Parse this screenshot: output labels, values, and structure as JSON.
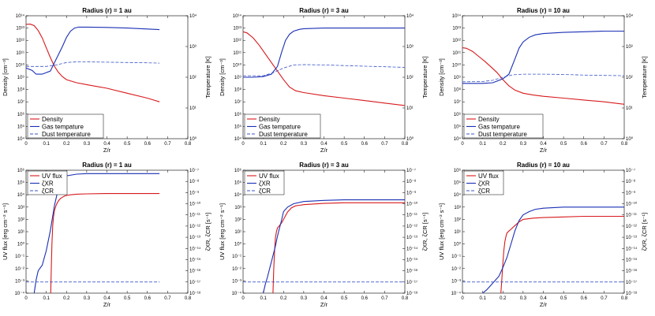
{
  "figure": {
    "colors": {
      "red": "#d7191c",
      "blue": "#1a2fb4",
      "dash": "#3a55c8"
    }
  },
  "chart_data": [
    {
      "type": "line",
      "title": "Radius (r) = 1 au",
      "xlabel": "Z/r",
      "ylabel_left": "Density [cm⁻³]",
      "ylabel_right": "Temperature [K]",
      "xlim": [
        0,
        0.8
      ],
      "xticks": [
        "0",
        "0.1",
        "0.2",
        "0.3",
        "0.4",
        "0.5",
        "0.6",
        "0.7",
        "0.8"
      ],
      "left_log": [
        4,
        14
      ],
      "left_ticks": [
        "10⁴",
        "10⁵",
        "10⁶",
        "10⁷",
        "10⁸",
        "10⁹",
        "10¹⁰",
        "10¹¹",
        "10¹²",
        "10¹³",
        "10¹⁴"
      ],
      "right_log": [
        0,
        4
      ],
      "right_ticks": [
        "10⁰",
        "10¹",
        "10²",
        "10³",
        "10⁴"
      ],
      "legend": [
        "Density",
        "Gas tempature",
        "Dust temperature"
      ],
      "series": [
        {
          "name": "Density",
          "color": "red",
          "dash": false,
          "axis": "left",
          "x": [
            0,
            0.02,
            0.04,
            0.06,
            0.08,
            0.1,
            0.12,
            0.14,
            0.16,
            0.18,
            0.2,
            0.25,
            0.3,
            0.4,
            0.5,
            0.6,
            0.66
          ],
          "y": [
            13.3,
            13.32,
            13.2,
            12.8,
            12.2,
            11.4,
            10.6,
            9.9,
            9.4,
            9.05,
            8.8,
            8.55,
            8.4,
            8.1,
            7.7,
            7.3,
            7.0
          ]
        },
        {
          "name": "Gas tempature",
          "color": "blue",
          "dash": false,
          "axis": "right",
          "x": [
            0,
            0.03,
            0.05,
            0.08,
            0.12,
            0.15,
            0.18,
            0.2,
            0.22,
            0.24,
            0.26,
            0.3,
            0.4,
            0.5,
            0.6,
            0.66
          ],
          "y": [
            2.3,
            2.22,
            2.1,
            2.1,
            2.2,
            2.6,
            3.0,
            3.3,
            3.5,
            3.6,
            3.63,
            3.63,
            3.62,
            3.6,
            3.57,
            3.55
          ]
        },
        {
          "name": "Dust temperature",
          "color": "dash",
          "dash": true,
          "axis": "right",
          "x": [
            0,
            0.1,
            0.15,
            0.2,
            0.25,
            0.3,
            0.4,
            0.5,
            0.6,
            0.66
          ],
          "y": [
            2.35,
            2.35,
            2.4,
            2.48,
            2.5,
            2.5,
            2.49,
            2.48,
            2.47,
            2.46
          ]
        }
      ]
    },
    {
      "type": "line",
      "title": "Radius (r) = 3 au",
      "xlabel": "Z/r",
      "ylabel_left": "Density [cm⁻³]",
      "ylabel_right": "Temperature [K]",
      "xlim": [
        0,
        0.8
      ],
      "xticks": [
        "0",
        "0.1",
        "0.2",
        "0.3",
        "0.4",
        "0.5",
        "0.6",
        "0.7",
        "0.8"
      ],
      "left_log": [
        4,
        14
      ],
      "left_ticks": [
        "10⁴",
        "10⁵",
        "10⁶",
        "10⁷",
        "10⁸",
        "10⁹",
        "10¹⁰",
        "10¹¹",
        "10¹²",
        "10¹³",
        "10¹⁴"
      ],
      "right_log": [
        0,
        4
      ],
      "right_ticks": [
        "10⁰",
        "10¹",
        "10²",
        "10³",
        "10⁴"
      ],
      "legend": [
        "Density",
        "Gas tempature",
        "Dust temperature"
      ],
      "series": [
        {
          "name": "Density",
          "color": "red",
          "dash": false,
          "axis": "left",
          "x": [
            0,
            0.02,
            0.05,
            0.08,
            0.11,
            0.14,
            0.17,
            0.2,
            0.23,
            0.26,
            0.3,
            0.4,
            0.5,
            0.6,
            0.7,
            0.8
          ],
          "y": [
            12.7,
            12.6,
            12.2,
            11.6,
            10.9,
            10.2,
            9.5,
            8.8,
            8.2,
            7.9,
            7.75,
            7.5,
            7.3,
            7.1,
            6.9,
            6.7
          ]
        },
        {
          "name": "Gas tempature",
          "color": "blue",
          "dash": false,
          "axis": "right",
          "x": [
            0,
            0.05,
            0.1,
            0.14,
            0.17,
            0.19,
            0.21,
            0.23,
            0.25,
            0.28,
            0.3,
            0.4,
            0.5,
            0.6,
            0.7,
            0.8
          ],
          "y": [
            2.0,
            2.0,
            2.02,
            2.1,
            2.35,
            2.8,
            3.2,
            3.4,
            3.5,
            3.56,
            3.58,
            3.6,
            3.6,
            3.6,
            3.6,
            3.6
          ]
        },
        {
          "name": "Dust temperature",
          "color": "dash",
          "dash": true,
          "axis": "right",
          "x": [
            0,
            0.1,
            0.15,
            0.2,
            0.25,
            0.3,
            0.4,
            0.5,
            0.6,
            0.7,
            0.8
          ],
          "y": [
            2.05,
            2.05,
            2.15,
            2.3,
            2.4,
            2.41,
            2.4,
            2.38,
            2.36,
            2.34,
            2.32
          ]
        }
      ]
    },
    {
      "type": "line",
      "title": "Radius (r) = 10 au",
      "xlabel": "Z/r",
      "ylabel_left": "Density [cm⁻³]",
      "ylabel_right": "Temperature [K]",
      "xlim": [
        0,
        0.8
      ],
      "xticks": [
        "0",
        "0.1",
        "0.2",
        "0.3",
        "0.4",
        "0.5",
        "0.6",
        "0.7",
        "0.8"
      ],
      "left_log": [
        4,
        14
      ],
      "left_ticks": [
        "10⁴",
        "10⁵",
        "10⁶",
        "10⁷",
        "10⁸",
        "10⁹",
        "10¹⁰",
        "10¹¹",
        "10¹²",
        "10¹³",
        "10¹⁴"
      ],
      "right_log": [
        0,
        4
      ],
      "right_ticks": [
        "10⁰",
        "10¹",
        "10²",
        "10³",
        "10⁴"
      ],
      "legend": [
        "Density",
        "Gas tempature",
        "Dust temperature"
      ],
      "series": [
        {
          "name": "Density",
          "color": "red",
          "dash": false,
          "axis": "left",
          "x": [
            0,
            0.02,
            0.05,
            0.08,
            0.11,
            0.14,
            0.17,
            0.2,
            0.23,
            0.26,
            0.3,
            0.35,
            0.4,
            0.5,
            0.6,
            0.7,
            0.8
          ],
          "y": [
            11.4,
            11.35,
            11.1,
            10.7,
            10.3,
            9.85,
            9.4,
            8.8,
            8.3,
            7.95,
            7.7,
            7.55,
            7.45,
            7.3,
            7.15,
            7.0,
            6.8
          ]
        },
        {
          "name": "Gas tempature",
          "color": "blue",
          "dash": false,
          "axis": "right",
          "x": [
            0,
            0.1,
            0.15,
            0.2,
            0.23,
            0.26,
            0.28,
            0.3,
            0.33,
            0.36,
            0.4,
            0.5,
            0.6,
            0.7,
            0.8
          ],
          "y": [
            1.8,
            1.8,
            1.82,
            1.95,
            2.1,
            2.6,
            2.95,
            3.15,
            3.3,
            3.38,
            3.42,
            3.46,
            3.48,
            3.5,
            3.5
          ]
        },
        {
          "name": "Dust temperature",
          "color": "dash",
          "dash": true,
          "axis": "right",
          "x": [
            0,
            0.1,
            0.15,
            0.2,
            0.25,
            0.3,
            0.4,
            0.5,
            0.6,
            0.7,
            0.8
          ],
          "y": [
            1.85,
            1.86,
            1.9,
            2.0,
            2.08,
            2.1,
            2.1,
            2.09,
            2.07,
            2.06,
            2.05
          ]
        }
      ]
    },
    {
      "type": "line",
      "title": "Radius (r) = 1 au",
      "xlabel": "Z/r",
      "ylabel_left": "UV flux [erg cm⁻² s⁻¹]",
      "ylabel_right": "ζXR, ζCR [s⁻¹]",
      "xlim": [
        0,
        0.8
      ],
      "xticks": [
        "0",
        "0.1",
        "0.2",
        "0.3",
        "0.4",
        "0.5",
        "0.6",
        "0.7",
        "0.8"
      ],
      "left_log": [
        -4,
        6
      ],
      "left_ticks": [
        "10⁻⁴",
        "10⁻³",
        "10⁻²",
        "10⁻¹",
        "10⁰",
        "10¹",
        "10²",
        "10³",
        "10⁴",
        "10⁵",
        "10⁶"
      ],
      "right_log": [
        -18,
        -7
      ],
      "right_ticks": [
        "10⁻¹⁸",
        "10⁻¹⁷",
        "10⁻¹⁶",
        "10⁻¹⁵",
        "10⁻¹⁴",
        "10⁻¹³",
        "10⁻¹²",
        "10⁻¹¹",
        "10⁻¹⁰",
        "10⁻⁹",
        "10⁻⁸",
        "10⁻⁷"
      ],
      "legend": [
        "UV flux",
        "ζXR",
        "ζCR"
      ],
      "series": [
        {
          "name": "UV flux",
          "color": "red",
          "dash": false,
          "axis": "left",
          "x": [
            0.122,
            0.125,
            0.128,
            0.132,
            0.136,
            0.14,
            0.15,
            0.16,
            0.17,
            0.18,
            0.19,
            0.2,
            0.22,
            0.25,
            0.3,
            0.4,
            0.5,
            0.6,
            0.66
          ],
          "y": [
            -4,
            -2,
            0,
            1.5,
            2.2,
            2.7,
            3.2,
            3.5,
            3.7,
            3.8,
            3.9,
            3.95,
            4.0,
            4.05,
            4.08,
            4.1,
            4.1,
            4.1,
            4.1
          ]
        },
        {
          "name": "ζXR",
          "color": "blue",
          "dash": false,
          "axis": "right",
          "x": [
            0.04,
            0.05,
            0.06,
            0.08,
            0.1,
            0.12,
            0.14,
            0.16,
            0.18,
            0.2,
            0.25,
            0.3,
            0.4,
            0.5,
            0.6,
            0.66
          ],
          "y": [
            -18,
            -16.8,
            -16,
            -15.5,
            -14.2,
            -12.4,
            -10.2,
            -8.6,
            -7.8,
            -7.5,
            -7.35,
            -7.3,
            -7.3,
            -7.3,
            -7.3,
            -7.3
          ]
        },
        {
          "name": "ζCR",
          "color": "dash",
          "dash": true,
          "axis": "right",
          "x": [
            0,
            0.66
          ],
          "y": [
            -17,
            -17
          ]
        }
      ]
    },
    {
      "type": "line",
      "title": "Radius (r) = 3 au",
      "xlabel": "Z/r",
      "ylabel_left": "UV flux [erg cm⁻² s⁻¹]",
      "ylabel_right": "ζXR, ζCR [s⁻¹]",
      "xlim": [
        0,
        0.8
      ],
      "xticks": [
        "0",
        "0.1",
        "0.2",
        "0.3",
        "0.4",
        "0.5",
        "0.6",
        "0.7",
        "0.8"
      ],
      "left_log": [
        -4,
        6
      ],
      "left_ticks": [
        "10⁻⁴",
        "10⁻³",
        "10⁻²",
        "10⁻¹",
        "10⁰",
        "10¹",
        "10²",
        "10³",
        "10⁴",
        "10⁵",
        "10⁶"
      ],
      "right_log": [
        -18,
        -7
      ],
      "right_ticks": [
        "10⁻¹⁸",
        "10⁻¹⁷",
        "10⁻¹⁶",
        "10⁻¹⁵",
        "10⁻¹⁴",
        "10⁻¹³",
        "10⁻¹²",
        "10⁻¹¹",
        "10⁻¹⁰",
        "10⁻⁹",
        "10⁻⁸",
        "10⁻⁷"
      ],
      "legend": [
        "UV flux",
        "ζXR",
        "ζCR"
      ],
      "series": [
        {
          "name": "UV flux",
          "color": "red",
          "dash": false,
          "axis": "left",
          "x": [
            0.148,
            0.152,
            0.156,
            0.16,
            0.165,
            0.17,
            0.18,
            0.19,
            0.2,
            0.22,
            0.24,
            0.26,
            0.3,
            0.4,
            0.5,
            0.6,
            0.7,
            0.8
          ],
          "y": [
            -4,
            -2,
            -0.5,
            0.5,
            1.0,
            1.3,
            1.5,
            1.7,
            2.0,
            2.6,
            2.95,
            3.1,
            3.2,
            3.3,
            3.35,
            3.35,
            3.35,
            3.35
          ]
        },
        {
          "name": "ζXR",
          "color": "blue",
          "dash": false,
          "axis": "right",
          "x": [
            0.1,
            0.11,
            0.12,
            0.13,
            0.14,
            0.15,
            0.16,
            0.17,
            0.18,
            0.19,
            0.2,
            0.22,
            0.25,
            0.3,
            0.4,
            0.5,
            0.6,
            0.7,
            0.8
          ],
          "y": [
            -18,
            -17.2,
            -16.6,
            -15.9,
            -15.2,
            -14.5,
            -13.8,
            -12.9,
            -12.2,
            -11.5,
            -10.7,
            -10.3,
            -10.0,
            -9.8,
            -9.7,
            -9.65,
            -9.65,
            -9.65,
            -9.65
          ]
        },
        {
          "name": "ζCR",
          "color": "dash",
          "dash": true,
          "axis": "right",
          "x": [
            0,
            0.8
          ],
          "y": [
            -17,
            -17
          ]
        }
      ]
    },
    {
      "type": "line",
      "title": "Radius (r) = 10 au",
      "xlabel": "Z/r",
      "ylabel_left": "UV flux [erg cm⁻² s⁻¹]",
      "ylabel_right": "ζXR, ζCR [s⁻¹]",
      "xlim": [
        0,
        0.8
      ],
      "xticks": [
        "0",
        "0.1",
        "0.2",
        "0.3",
        "0.4",
        "0.5",
        "0.6",
        "0.7",
        "0.8"
      ],
      "left_log": [
        -4,
        6
      ],
      "left_ticks": [
        "10⁻⁴",
        "10⁻³",
        "10⁻²",
        "10⁻¹",
        "10⁰",
        "10¹",
        "10²",
        "10³",
        "10⁴",
        "10⁵",
        "10⁶"
      ],
      "right_log": [
        -18,
        -7
      ],
      "right_ticks": [
        "10⁻¹⁸",
        "10⁻¹⁷",
        "10⁻¹⁶",
        "10⁻¹⁵",
        "10⁻¹⁴",
        "10⁻¹³",
        "10⁻¹²",
        "10⁻¹¹",
        "10⁻¹⁰",
        "10⁻⁹",
        "10⁻⁸",
        "10⁻⁷"
      ],
      "legend": [
        "UV flux",
        "ζXR",
        "ζCR"
      ],
      "series": [
        {
          "name": "UV flux",
          "color": "red",
          "dash": false,
          "axis": "left",
          "x": [
            0.19,
            0.195,
            0.2,
            0.205,
            0.21,
            0.215,
            0.22,
            0.23,
            0.24,
            0.26,
            0.28,
            0.3,
            0.35,
            0.4,
            0.5,
            0.6,
            0.7,
            0.8
          ],
          "y": [
            -4,
            -2.8,
            -1.5,
            -0.5,
            0.2,
            0.6,
            0.9,
            1.05,
            1.2,
            1.5,
            1.8,
            2.0,
            2.1,
            2.15,
            2.2,
            2.25,
            2.25,
            2.25
          ]
        },
        {
          "name": "ζXR",
          "color": "blue",
          "dash": false,
          "axis": "right",
          "x": [
            0.1,
            0.12,
            0.14,
            0.16,
            0.18,
            0.2,
            0.22,
            0.24,
            0.26,
            0.28,
            0.3,
            0.33,
            0.36,
            0.4,
            0.5,
            0.6,
            0.7,
            0.8
          ],
          "y": [
            -18,
            -17.7,
            -17.3,
            -16.9,
            -16.5,
            -15.7,
            -14.8,
            -13.6,
            -12.4,
            -11.5,
            -11.0,
            -10.7,
            -10.5,
            -10.4,
            -10.3,
            -10.3,
            -10.3,
            -10.3
          ]
        },
        {
          "name": "ζCR",
          "color": "dash",
          "dash": true,
          "axis": "right",
          "x": [
            0,
            0.8
          ],
          "y": [
            -17,
            -17
          ]
        }
      ]
    }
  ]
}
